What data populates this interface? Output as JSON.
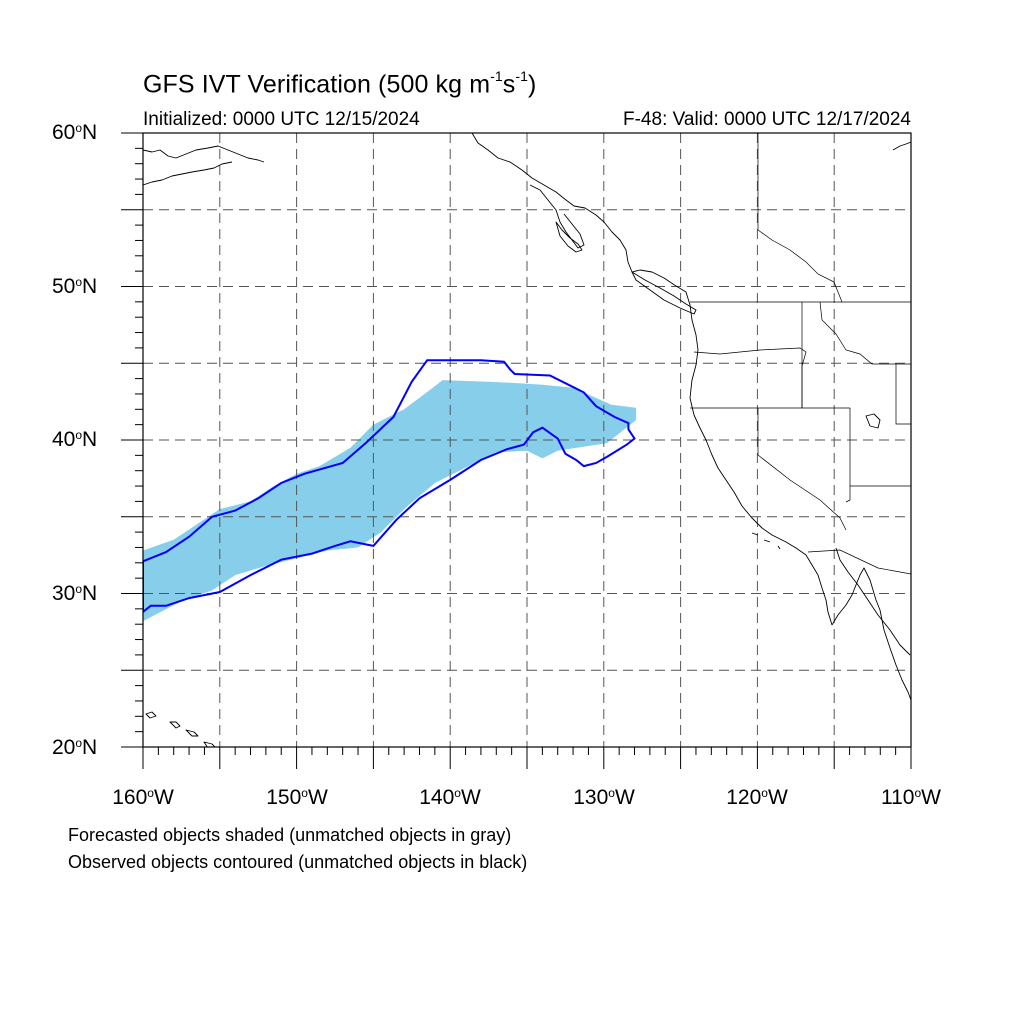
{
  "figure": {
    "title_prefix": "GFS IVT Verification (500 kg m",
    "title_exp1": "-1",
    "title_mid": "s",
    "title_exp2": "-1",
    "title_suffix": ")",
    "initialized": "Initialized: 0000 UTC 12/15/2024",
    "valid": "F-48: Valid: 0000 UTC 12/17/2024",
    "footnote_1": "Forecasted objects shaded (unmatched objects in gray)",
    "footnote_2": "Observed objects contoured (unmatched objects in black)"
  },
  "axes": {
    "lat_labels": [
      {
        "num": "60",
        "hem": "N"
      },
      {
        "num": "50",
        "hem": "N"
      },
      {
        "num": "40",
        "hem": "N"
      },
      {
        "num": "30",
        "hem": "N"
      },
      {
        "num": "20",
        "hem": "N"
      }
    ],
    "lon_labels": [
      {
        "num": "160",
        "hem": "W"
      },
      {
        "num": "150",
        "hem": "W"
      },
      {
        "num": "140",
        "hem": "W"
      },
      {
        "num": "130",
        "hem": "W"
      },
      {
        "num": "120",
        "hem": "W"
      },
      {
        "num": "110",
        "hem": "W"
      }
    ],
    "lon_range": [
      -160,
      -110
    ],
    "lat_range": [
      20,
      60
    ],
    "grid": "dashed, every 5 degrees"
  },
  "colors": {
    "forecast_fill": "#87ceeb",
    "observed_contour": "#0000ff",
    "coastline": "#000000",
    "grid": "#555555"
  },
  "chart_data": {
    "type": "map",
    "projection": "cylindrical equidistant",
    "forecast_object": {
      "description_in_legend": "Forecasted objects shaded",
      "matched": true,
      "outline_lonlat": [
        [
          -160,
          32.8
        ],
        [
          -158,
          33.5
        ],
        [
          -156.5,
          34.5
        ],
        [
          -155,
          35.5
        ],
        [
          -153,
          36
        ],
        [
          -151.5,
          37
        ],
        [
          -150,
          37.8
        ],
        [
          -148.5,
          38.3
        ],
        [
          -146.5,
          39.5
        ],
        [
          -145,
          41
        ],
        [
          -143,
          42
        ],
        [
          -141,
          43.5
        ],
        [
          -140.5,
          43.9
        ],
        [
          -137.5,
          43.8
        ],
        [
          -135.5,
          43.7
        ],
        [
          -134,
          43.6
        ],
        [
          -132,
          43.4
        ],
        [
          -129.5,
          42.3
        ],
        [
          -127.9,
          42.1
        ],
        [
          -127.9,
          41.3
        ],
        [
          -129.8,
          39.8
        ],
        [
          -133,
          39.3
        ],
        [
          -134,
          38.8
        ],
        [
          -135,
          39.3
        ],
        [
          -137,
          39.2
        ],
        [
          -139,
          38.2
        ],
        [
          -141,
          37.2
        ],
        [
          -143,
          35.5
        ],
        [
          -144.5,
          34
        ],
        [
          -146,
          33
        ],
        [
          -148,
          32.8
        ],
        [
          -150,
          32.3
        ],
        [
          -152,
          31.8
        ],
        [
          -154,
          31.2
        ],
        [
          -155.5,
          30.2
        ],
        [
          -157.5,
          29.5
        ],
        [
          -160,
          28.2
        ]
      ]
    },
    "observed_object": {
      "description_in_legend": "Observed objects contoured",
      "matched": true,
      "outline_lonlat": [
        [
          -160,
          32.1
        ],
        [
          -158.5,
          32.7
        ],
        [
          -157,
          33.7
        ],
        [
          -155.5,
          35
        ],
        [
          -154,
          35.4
        ],
        [
          -152.5,
          36.2
        ],
        [
          -151,
          37.2
        ],
        [
          -149.5,
          37.8
        ],
        [
          -147,
          38.5
        ],
        [
          -145.5,
          39.8
        ],
        [
          -143.7,
          41.5
        ],
        [
          -142.5,
          43.8
        ],
        [
          -141.5,
          45.2
        ],
        [
          -140,
          45.2
        ],
        [
          -138,
          45.2
        ],
        [
          -136.5,
          45.1
        ],
        [
          -136.1,
          44.6
        ],
        [
          -135.8,
          44.3
        ],
        [
          -133.5,
          44.2
        ],
        [
          -132.5,
          43.7
        ],
        [
          -131.3,
          43.1
        ],
        [
          -130.5,
          42.2
        ],
        [
          -129.3,
          41.5
        ],
        [
          -128.4,
          41.1
        ],
        [
          -128.4,
          40.7
        ],
        [
          -128,
          40.1
        ],
        [
          -128.5,
          39.7
        ],
        [
          -129.8,
          38.9
        ],
        [
          -130.5,
          38.5
        ],
        [
          -131.3,
          38.3
        ],
        [
          -131.8,
          38.7
        ],
        [
          -132.5,
          39.1
        ],
        [
          -133,
          40.1
        ],
        [
          -134,
          40.8
        ],
        [
          -134.6,
          40.5
        ],
        [
          -135.2,
          39.7
        ],
        [
          -136.3,
          39.4
        ],
        [
          -138,
          38.7
        ],
        [
          -140,
          37.4
        ],
        [
          -142,
          36.2
        ],
        [
          -143.5,
          34.8
        ],
        [
          -145,
          33.1
        ],
        [
          -146.5,
          33.4
        ],
        [
          -147.5,
          33.1
        ],
        [
          -149,
          32.6
        ],
        [
          -151,
          32.2
        ],
        [
          -153,
          31.2
        ],
        [
          -155,
          30.1
        ],
        [
          -157,
          29.7
        ],
        [
          -158.5,
          29.2
        ],
        [
          -159.5,
          29.2
        ],
        [
          -160,
          28.8
        ]
      ]
    }
  }
}
